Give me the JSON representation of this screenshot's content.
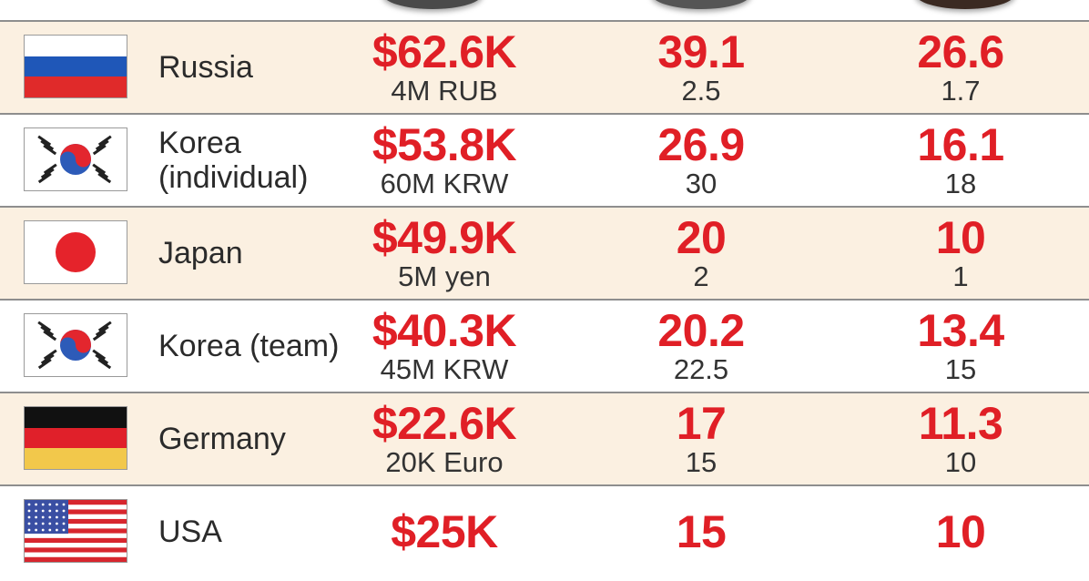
{
  "colors": {
    "accent": "#e01f26",
    "row_shade": "#fbf0e1",
    "text": "#2b2b2b"
  },
  "rows": [
    {
      "country": "Russia",
      "flag": "russia-flag",
      "prize": "$62.6K",
      "prize_local": "4M RUB",
      "col2": "39.1",
      "col2_sub": "2.5",
      "col3": "26.6",
      "col3_sub": "1.7"
    },
    {
      "country": "Korea (individual)",
      "flag": "south-korea-flag",
      "prize": "$53.8K",
      "prize_local": "60M KRW",
      "col2": "26.9",
      "col2_sub": "30",
      "col3": "16.1",
      "col3_sub": "18"
    },
    {
      "country": "Japan",
      "flag": "japan-flag",
      "prize": "$49.9K",
      "prize_local": "5M yen",
      "col2": "20",
      "col2_sub": "2",
      "col3": "10",
      "col3_sub": "1"
    },
    {
      "country": "Korea (team)",
      "flag": "south-korea-flag",
      "prize": "$40.3K",
      "prize_local": "45M KRW",
      "col2": "20.2",
      "col2_sub": "22.5",
      "col3": "13.4",
      "col3_sub": "15"
    },
    {
      "country": "Germany",
      "flag": "germany-flag",
      "prize": "$22.6K",
      "prize_local": "20K Euro",
      "col2": "17",
      "col2_sub": "15",
      "col3": "11.3",
      "col3_sub": "10"
    },
    {
      "country": "USA",
      "flag": "usa-flag",
      "prize": "$25K",
      "prize_local": "",
      "col2": "15",
      "col2_sub": "",
      "col3": "10",
      "col3_sub": ""
    }
  ],
  "chart_data": {
    "type": "table",
    "categories": [
      "Russia",
      "Korea (individual)",
      "Japan",
      "Korea (team)",
      "Germany",
      "USA"
    ],
    "series": [
      {
        "values": [
          "$62.6K",
          "$53.8K",
          "$49.9K",
          "$40.3K",
          "$22.6K",
          "$25K"
        ]
      },
      {
        "values": [
          "4M RUB",
          "60M KRW",
          "5M yen",
          "45M KRW",
          "20K Euro",
          ""
        ]
      },
      {
        "values": [
          39.1,
          26.9,
          20,
          20.2,
          17,
          15
        ]
      },
      {
        "values": [
          2.5,
          30,
          2,
          22.5,
          15,
          null
        ]
      },
      {
        "values": [
          26.6,
          16.1,
          10,
          13.4,
          11.3,
          10
        ]
      },
      {
        "values": [
          1.7,
          18,
          1,
          15,
          10,
          null
        ]
      }
    ]
  }
}
